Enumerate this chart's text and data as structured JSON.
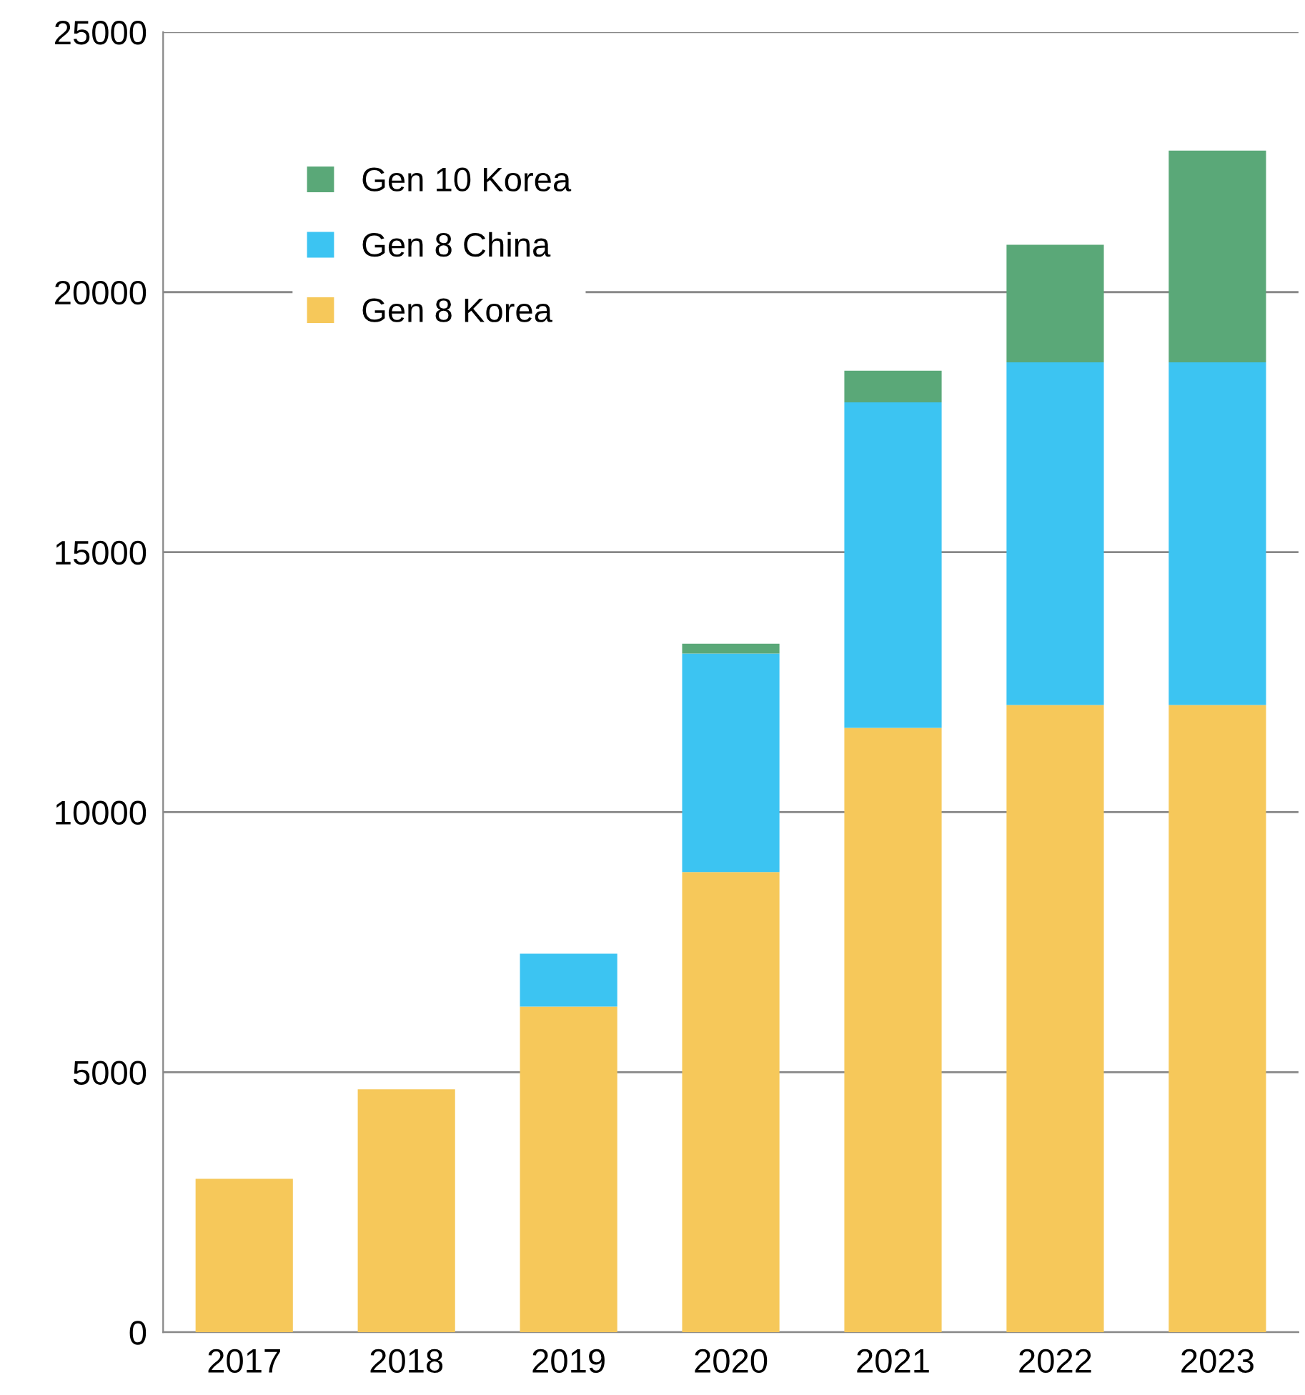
{
  "chart_data": {
    "type": "bar",
    "stacked": true,
    "categories": [
      "2017",
      "2018",
      "2019",
      "2020",
      "2021",
      "2022",
      "2023"
    ],
    "series": [
      {
        "name": "Gen 8 Korea",
        "color": "#f6c85a",
        "values": [
          2950,
          4670,
          6260,
          8850,
          11620,
          12060,
          12060
        ]
      },
      {
        "name": "Gen 8 China",
        "color": "#3cc4f2",
        "values": [
          0,
          0,
          1020,
          4200,
          6260,
          6590,
          6590
        ]
      },
      {
        "name": "Gen 10 Korea",
        "color": "#5aa878",
        "values": [
          0,
          0,
          0,
          190,
          610,
          2260,
          4070
        ]
      }
    ],
    "ylim": [
      0,
      25000
    ],
    "yticks": [
      0,
      5000,
      10000,
      15000,
      20000,
      25000
    ],
    "grid": "y",
    "legend": "top left"
  }
}
